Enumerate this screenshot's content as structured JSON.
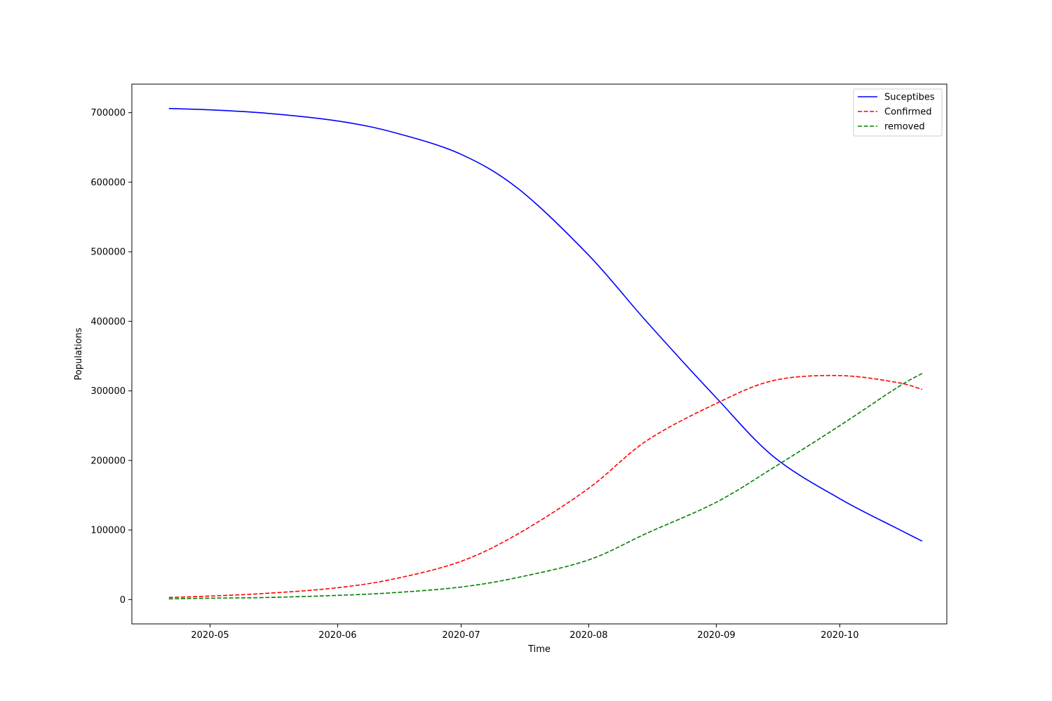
{
  "chart_data": {
    "type": "line",
    "title": "",
    "xlabel": "Time",
    "ylabel": "Populations",
    "xlim": [
      "2020-04-12",
      "2020-10-27"
    ],
    "ylim": [
      -35000,
      741000
    ],
    "x_ticks": [
      "2020-05",
      "2020-06",
      "2020-07",
      "2020-08",
      "2020-09",
      "2020-10"
    ],
    "y_ticks": [
      "0",
      "100000",
      "200000",
      "300000",
      "400000",
      "500000",
      "600000",
      "700000"
    ],
    "grid": false,
    "legend_position": "top-right",
    "series": [
      {
        "name": "Suceptibes",
        "color": "#0000ff",
        "style": "solid",
        "x": [
          "2020-04-21",
          "2020-05-01",
          "2020-05-15",
          "2020-06-01",
          "2020-06-15",
          "2020-07-01",
          "2020-07-15",
          "2020-08-01",
          "2020-08-15",
          "2020-09-01",
          "2020-09-15",
          "2020-10-01",
          "2020-10-15",
          "2020-10-21"
        ],
        "values": [
          706000,
          704000,
          699000,
          688000,
          671000,
          640000,
          590000,
          495000,
          400000,
          290000,
          205000,
          145000,
          102000,
          84000
        ]
      },
      {
        "name": "Confirmed",
        "color": "#ff0000",
        "style": "dashed",
        "x": [
          "2020-04-21",
          "2020-05-01",
          "2020-05-15",
          "2020-06-01",
          "2020-06-15",
          "2020-07-01",
          "2020-07-15",
          "2020-08-01",
          "2020-08-15",
          "2020-09-01",
          "2020-09-15",
          "2020-10-01",
          "2020-10-15",
          "2020-10-21"
        ],
        "values": [
          3000,
          5000,
          9000,
          17000,
          30000,
          55000,
          95000,
          160000,
          228000,
          282000,
          315000,
          322000,
          312000,
          302000
        ]
      },
      {
        "name": "removed",
        "color": "#008000",
        "style": "dashed",
        "x": [
          "2020-04-21",
          "2020-05-01",
          "2020-05-15",
          "2020-06-01",
          "2020-06-15",
          "2020-07-01",
          "2020-07-15",
          "2020-08-01",
          "2020-08-15",
          "2020-09-01",
          "2020-09-15",
          "2020-10-01",
          "2020-10-15",
          "2020-10-21"
        ],
        "values": [
          1000,
          2000,
          3000,
          6000,
          10000,
          18000,
          32000,
          57000,
          95000,
          140000,
          190000,
          250000,
          305000,
          325000
        ]
      }
    ]
  }
}
